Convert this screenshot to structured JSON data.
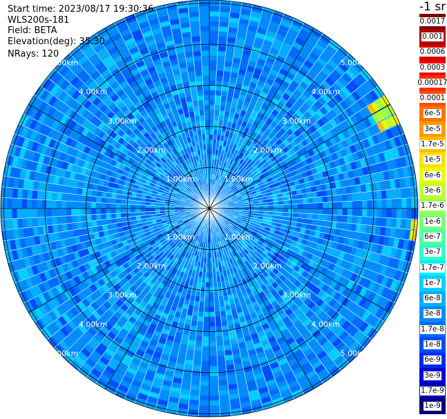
{
  "header": {
    "start_time": "Start time: 2023/08/17 19:30:36",
    "instrument": "WLS200s-181",
    "field": "Field: BETA",
    "elevation": "Elevation(deg): 35.30",
    "nrays": "NRays: 120"
  },
  "colorbar": {
    "units": "-1 sr",
    "levels": [
      {
        "label": "0.0017",
        "color": "#7f0000"
      },
      {
        "label": "0.001",
        "color": "#b00000"
      },
      {
        "label": "0.0006",
        "color": "#d40000"
      },
      {
        "label": "0.0003",
        "color": "#f00000"
      },
      {
        "label": "0.00017",
        "color": "#ff2c00"
      },
      {
        "label": "0.0001",
        "color": "#ff5000"
      },
      {
        "label": "6e-5",
        "color": "#ff7400"
      },
      {
        "label": "3e-5",
        "color": "#ff9a00"
      },
      {
        "label": "1.7e-5",
        "color": "#ffbe00"
      },
      {
        "label": "1e-5",
        "color": "#ffe000"
      },
      {
        "label": "6e-6",
        "color": "#e8ff00"
      },
      {
        "label": "3e-6",
        "color": "#c0ff2c"
      },
      {
        "label": "1.7e-6",
        "color": "#9cff50"
      },
      {
        "label": "1e-6",
        "color": "#78ff78"
      },
      {
        "label": "6e-7",
        "color": "#50ffa0"
      },
      {
        "label": "3e-7",
        "color": "#2cffc8"
      },
      {
        "label": "1.7e-7",
        "color": "#00f0ff"
      },
      {
        "label": "1e-7",
        "color": "#00d0ff"
      },
      {
        "label": "6e-8",
        "color": "#00aeff"
      },
      {
        "label": "3e-8",
        "color": "#008cff"
      },
      {
        "label": "1.7e-8",
        "color": "#006cff"
      },
      {
        "label": "1e-8",
        "color": "#004cff"
      },
      {
        "label": "6e-9",
        "color": "#0028f0"
      },
      {
        "label": "3e-9",
        "color": "#0000d4"
      },
      {
        "label": "1.7e-9",
        "color": "#0000a8"
      },
      {
        "label": "1e-9",
        "color": "#00007a"
      }
    ]
  },
  "chart_data": {
    "type": "heatmap",
    "projection": "polar (PPI scan)",
    "field": "BETA",
    "elevation_deg": 35.3,
    "nrays": 120,
    "units": "-1 sr",
    "color_scale": "logarithmic",
    "range_rings_km": [
      1,
      2,
      3,
      4,
      5
    ],
    "ring_labels": [
      "1.00km",
      "2.00km",
      "3.00km",
      "4.00km",
      "5.00km"
    ],
    "radial_spokes_deg": [
      0,
      30,
      60,
      90,
      120,
      150,
      180,
      210,
      240,
      270,
      300,
      330
    ],
    "dominant_level": "3e-8",
    "features": [
      {
        "description": "enhanced returns",
        "azimuth_deg": [
          57,
          65
        ],
        "range_km": [
          4.6,
          5.3
        ],
        "level": "6e-6"
      },
      {
        "description": "enhanced returns",
        "azimuth_deg": [
          93,
          98
        ],
        "range_km": [
          4.9,
          5.3
        ],
        "level": "1.7e-5"
      }
    ]
  }
}
